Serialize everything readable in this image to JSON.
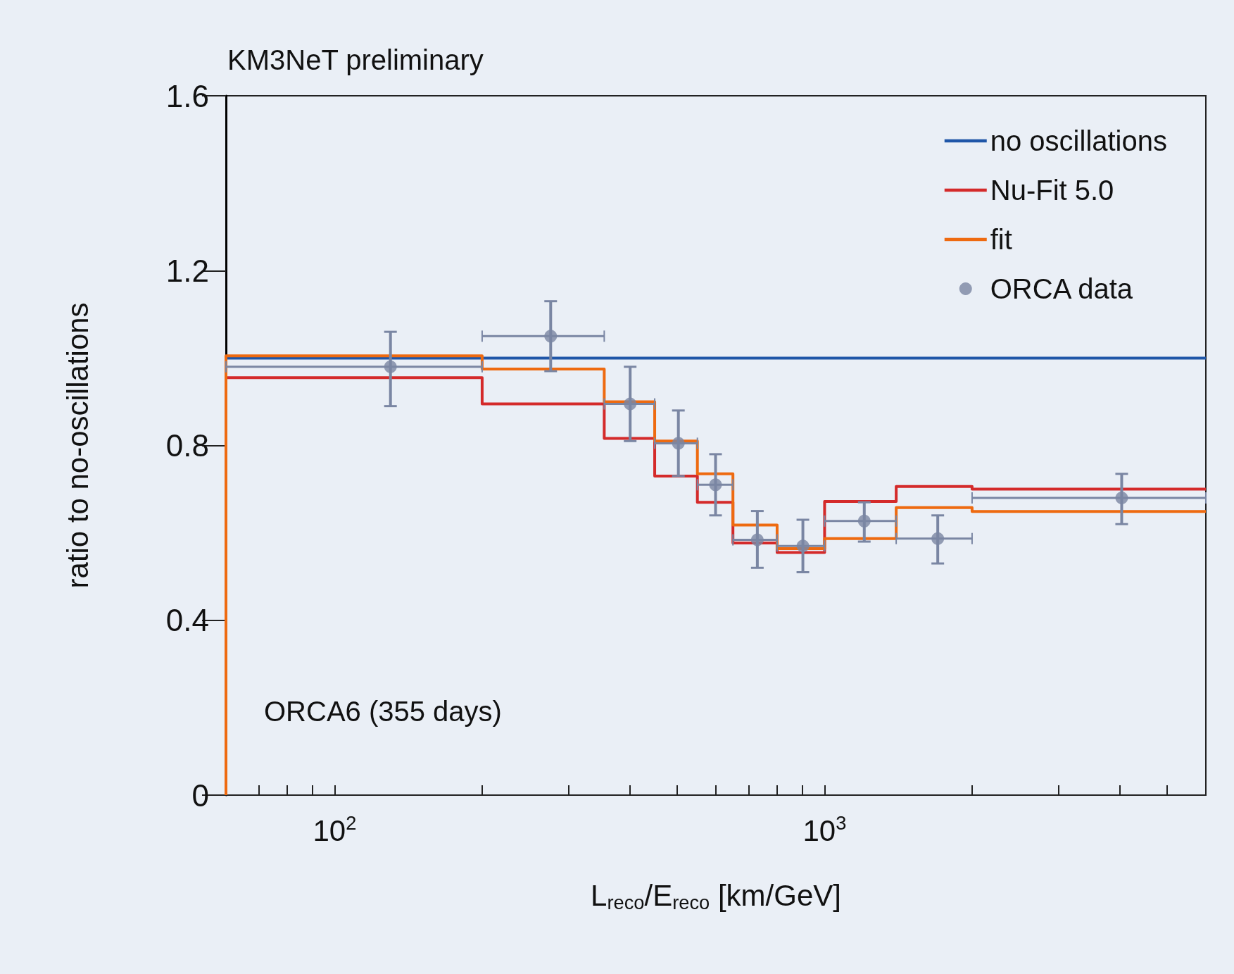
{
  "chart_data": {
    "type": "step",
    "title": "KM3NeT preliminary",
    "xlabel": "L$_{reco}$/E$_{reco}$ [km/GeV]",
    "ylabel": "ratio to no-oscillations",
    "annotations": [
      "ORCA6 (355 days)"
    ],
    "log": "x",
    "xlim": [
      60,
      6000
    ],
    "ylim": [
      0,
      1.6
    ],
    "xticks": [
      {
        "value": 70,
        "label": null
      },
      {
        "value": 80,
        "label": null
      },
      {
        "value": 90,
        "label": null
      },
      {
        "value": 100,
        "label": "10$^{2}$"
      },
      {
        "value": 200,
        "label": null
      },
      {
        "value": 300,
        "label": null
      },
      {
        "value": 400,
        "label": null
      },
      {
        "value": 500,
        "label": null
      },
      {
        "value": 600,
        "label": null
      },
      {
        "value": 700,
        "label": null
      },
      {
        "value": 800,
        "label": null
      },
      {
        "value": 900,
        "label": null
      },
      {
        "value": 1000,
        "label": "10$^{3}$"
      },
      {
        "value": 2000,
        "label": null
      },
      {
        "value": 3000,
        "label": null
      },
      {
        "value": 4000,
        "label": null
      },
      {
        "value": 5000,
        "label": null
      }
    ],
    "yticks": [
      0,
      0.4,
      0.8,
      1.2,
      1.6
    ],
    "grid": false,
    "legend": "top right",
    "series": [
      {
        "name": "no oscillations",
        "color": "#1f56a8",
        "x": [
          60,
          6000
        ],
        "values": [
          1.0,
          1.0
        ]
      },
      {
        "name": "Nu-Fit 5.0",
        "color": "#d42a2a",
        "x": [
          60,
          200,
          355,
          450,
          550,
          650,
          800,
          1000,
          1400,
          2000,
          6000
        ],
        "values": [
          0.955,
          0.895,
          0.816,
          0.73,
          0.67,
          0.577,
          0.555,
          0.672,
          0.706,
          0.7,
          0.7
        ]
      },
      {
        "name": "fit",
        "color": "#ee6a10",
        "x": [
          60,
          60,
          200,
          355,
          450,
          550,
          650,
          800,
          1000,
          1400,
          2000,
          6000
        ],
        "values": [
          0,
          1.005,
          0.975,
          0.9,
          0.81,
          0.735,
          0.618,
          0.564,
          0.587,
          0.658,
          0.649,
          0.649
        ]
      },
      {
        "name": "ORCA data",
        "type": "scatter",
        "marker": "circle",
        "color": "#7a86a3",
        "x": [
          130,
          276,
          401,
          503,
          599,
          729,
          903,
          1205,
          1702,
          4040
        ],
        "values": [
          0.98,
          1.05,
          0.895,
          0.805,
          0.71,
          0.584,
          0.57,
          0.627,
          0.587,
          0.68
        ],
        "errors": [
          [
            0.89,
            1.06
          ],
          [
            0.97,
            1.13
          ],
          [
            0.81,
            0.98
          ],
          [
            0.73,
            0.88
          ],
          [
            0.64,
            0.78
          ],
          [
            0.52,
            0.65
          ],
          [
            0.51,
            0.63
          ],
          [
            0.58,
            0.67
          ],
          [
            0.53,
            0.64
          ],
          [
            0.62,
            0.735
          ]
        ],
        "xerrors": [
          [
            60,
            200
          ],
          [
            200,
            355
          ],
          [
            355,
            450
          ],
          [
            450,
            550
          ],
          [
            550,
            650
          ],
          [
            650,
            800
          ],
          [
            800,
            1000
          ],
          [
            1000,
            1400
          ],
          [
            1400,
            2000
          ],
          [
            2000,
            6000
          ]
        ]
      }
    ]
  }
}
